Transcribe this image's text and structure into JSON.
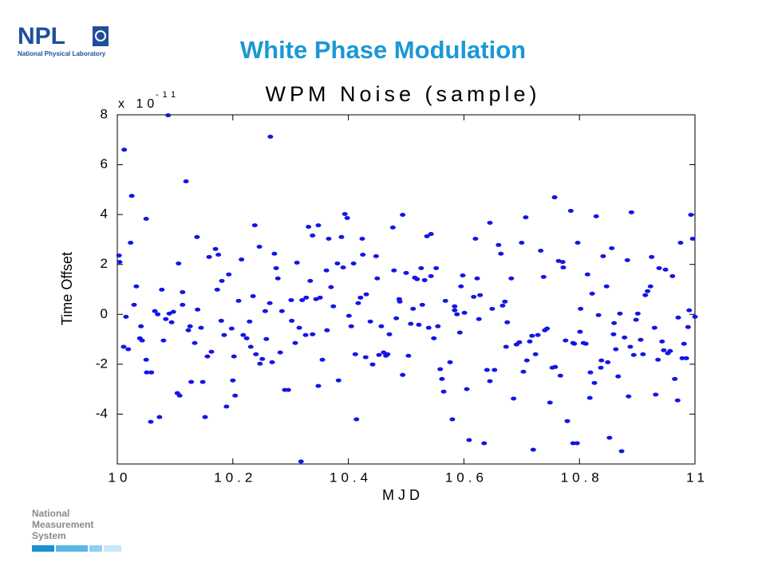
{
  "slide": {
    "title": "White Phase Modulation",
    "logo": "NPL",
    "organisation": "National Physical Laboratory",
    "footer": [
      "National",
      "Measurement",
      "System"
    ]
  },
  "chart_data": {
    "type": "scatter",
    "title": "WPM Noise (sample)",
    "x_label": "MJD",
    "y_label": "Time Offset",
    "y_multiplier": "x 10",
    "y_multiplier_exponent": "-11",
    "color": "#1414e6",
    "xlim": [
      10,
      11
    ],
    "ylim": [
      -6,
      8
    ],
    "xticks": [
      10,
      10.2,
      10.4,
      10.6,
      10.8,
      11
    ],
    "yticks": [
      -4,
      -2,
      0,
      2,
      4,
      6,
      8
    ],
    "x": [
      10.003,
      10.004,
      10.011,
      10.012,
      10.015,
      10.019,
      10.025,
      10.023,
      10.029,
      10.033,
      10.039,
      10.041,
      10.043,
      10.05,
      10.05,
      10.051,
      10.058,
      10.059,
      10.065,
      10.07,
      10.073,
      10.077,
      10.08,
      10.084,
      10.088,
      10.09,
      10.094,
      10.097,
      10.104,
      10.108,
      10.106,
      10.113,
      10.113,
      10.119,
      10.123,
      10.126,
      10.128,
      10.134,
      10.138,
      10.139,
      10.145,
      10.148,
      10.152,
      10.156,
      10.159,
      10.163,
      10.17,
      10.173,
      10.175,
      10.18,
      10.181,
      10.185,
      10.189,
      10.193,
      10.198,
      10.2,
      10.202,
      10.204,
      10.21,
      10.215,
      10.218,
      10.224,
      10.229,
      10.231,
      10.235,
      10.238,
      10.24,
      10.246,
      10.247,
      10.251,
      10.256,
      10.258,
      10.264,
      10.265,
      10.268,
      10.272,
      10.275,
      10.278,
      10.282,
      10.285,
      10.29,
      10.296,
      10.301,
      10.302,
      10.308,
      10.311,
      10.315,
      10.318,
      10.32,
      10.326,
      10.327,
      10.331,
      10.334,
      10.338,
      10.338,
      10.344,
      10.348,
      10.348,
      10.351,
      10.355,
      10.362,
      10.363,
      10.366,
      10.37,
      10.374,
      10.381,
      10.383,
      10.388,
      10.391,
      10.394,
      10.398,
      10.401,
      10.405,
      10.409,
      10.412,
      10.414,
      10.417,
      10.421,
      10.424,
      10.425,
      10.43,
      10.431,
      10.438,
      10.442,
      10.448,
      10.45,
      10.453,
      10.457,
      10.461,
      10.465,
      10.468,
      10.471,
      10.477,
      10.479,
      10.483,
      10.488,
      10.489,
      10.494,
      10.494,
      10.5,
      10.504,
      10.508,
      10.512,
      10.515,
      10.519,
      10.522,
      10.526,
      10.528,
      10.532,
      10.536,
      10.539,
      10.543,
      10.543,
      10.548,
      10.552,
      10.555,
      10.559,
      10.562,
      10.565,
      10.568,
      10.576,
      10.58,
      10.584,
      10.584,
      10.588,
      10.593,
      10.595,
      10.598,
      10.601,
      10.605,
      10.609,
      10.617,
      10.62,
      10.623,
      10.626,
      10.628,
      10.635,
      10.64,
      10.645,
      10.645,
      10.649,
      10.653,
      10.66,
      10.664,
      10.667,
      10.671,
      10.673,
      10.675,
      10.682,
      10.686,
      10.691,
      10.696,
      10.7,
      10.703,
      10.707,
      10.709,
      10.714,
      10.718,
      10.72,
      10.724,
      10.728,
      10.733,
      10.738,
      10.74,
      10.744,
      10.749,
      10.753,
      10.757,
      10.758,
      10.764,
      10.767,
      10.771,
      10.772,
      10.776,
      10.779,
      10.785,
      10.789,
      10.789,
      10.791,
      10.796,
      10.797,
      10.801,
      10.802,
      10.807,
      10.811,
      10.814,
      10.818,
      10.819,
      10.822,
      10.826,
      10.829,
      10.833,
      10.837,
      10.838,
      10.841,
      10.847,
      10.849,
      10.852,
      10.856,
      10.859,
      10.86,
      10.863,
      10.867,
      10.87,
      10.873,
      10.878,
      10.883,
      10.885,
      10.888,
      10.89,
      10.894,
      10.898,
      10.901,
      10.906,
      10.91,
      10.914,
      10.918,
      10.923,
      10.925,
      10.93,
      10.932,
      10.936,
      10.938,
      10.943,
      10.946,
      10.949,
      10.953,
      10.957,
      10.961,
      10.965,
      10.97,
      10.971,
      10.975,
      10.978,
      10.981,
      10.985,
      10.988,
      10.99,
      10.993,
      10.996,
      11
    ],
    "values": [
      2.36,
      2.1,
      -1.3,
      6.6,
      -0.1,
      -1.4,
      4.75,
      2.87,
      0.38,
      1.12,
      -0.96,
      -0.48,
      -1.05,
      3.83,
      -1.82,
      -2.33,
      -4.31,
      -2.33,
      0.13,
      0,
      -4.12,
      0.99,
      -1.05,
      -0.19,
      7.98,
      0.03,
      -0.32,
      0.1,
      -3.16,
      -3.26,
      2.04,
      0.38,
      0.89,
      5.33,
      -0.64,
      -0.48,
      -2.71,
      -1.15,
      3.1,
      0.19,
      -0.54,
      -2.71,
      -4.12,
      -1.69,
      2.3,
      -1.5,
      2.62,
      0.99,
      2.39,
      -0.26,
      1.34,
      -0.83,
      -3.7,
      1.6,
      -0.57,
      -2.65,
      -1.69,
      -3.26,
      0.54,
      2.2,
      -0.83,
      -0.96,
      -0.29,
      -1.3,
      0.73,
      3.57,
      -1.6,
      2.71,
      -1.98,
      -1.79,
      0.13,
      -0.99,
      0.45,
      7.12,
      -1.92,
      2.43,
      1.85,
      1.44,
      -1.53,
      0.13,
      -3.03,
      -3.03,
      0.57,
      -0.26,
      -1.15,
      2.07,
      -0.54,
      -5.9,
      0.57,
      -0.83,
      0.67,
      3.51,
      1.34,
      3.16,
      -0.8,
      0.61,
      3.57,
      -2.87,
      0.67,
      -1.82,
      1.76,
      -0.64,
      3.03,
      1.09,
      0.32,
      2.04,
      -2.65,
      3.1,
      1.88,
      4.02,
      3.86,
      -0.06,
      -0.48,
      2.04,
      -1.6,
      -4.21,
      0.45,
      0.67,
      3.03,
      2.39,
      -1.72,
      0.8,
      -0.29,
      -2.01,
      2.33,
      1.44,
      -1.63,
      -0.48,
      -1.53,
      -1.66,
      -1.6,
      -0.8,
      3.48,
      1.76,
      -0.16,
      0.61,
      0.51,
      3.99,
      -2.43,
      1.66,
      -1.66,
      -0.38,
      0.22,
      1.47,
      1.41,
      -0.42,
      1.85,
      0.38,
      1.37,
      3.13,
      -0.54,
      3.22,
      1.53,
      -0.96,
      1.85,
      -0.48,
      -2.2,
      -2.59,
      -3.1,
      0.54,
      -1.92,
      -4.21,
      0.32,
      0.16,
      0,
      -0.73,
      1.12,
      1.56,
      0.06,
      -3,
      -5.04,
      0.7,
      3.03,
      1.44,
      -0.19,
      0.77,
      -5.17,
      -2.23,
      -2.68,
      3.67,
      0.22,
      -2.23,
      2.78,
      2.43,
      0.35,
      0.51,
      -1.3,
      -0.32,
      1.44,
      -3.38,
      -1.21,
      -1.12,
      2.87,
      -2.3,
      3.89,
      -1.85,
      -1.09,
      -0.86,
      -5.43,
      -1.6,
      -0.83,
      2.55,
      1.5,
      -0.64,
      -0.57,
      -3.54,
      -2.14,
      4.69,
      -2.11,
      2.14,
      -2.46,
      2.1,
      1.88,
      -1.05,
      -4.28,
      4.15,
      -5.17,
      -1.15,
      -1.18,
      -5.17,
      2.87,
      -0.7,
      0.22,
      -1.15,
      -1.18,
      1.6,
      -3.35,
      -2.33,
      0.83,
      -2.75,
      3.93,
      -0.03,
      -2.14,
      -1.85,
      2.33,
      1.12,
      -1.92,
      -4.95,
      2.65,
      -0.8,
      -0.35,
      -1.4,
      -2.49,
      0.03,
      -5.49,
      -0.93,
      2.17,
      -3.29,
      -1.3,
      4.09,
      -1.63,
      -0.22,
      0.03,
      -1.02,
      -1.6,
      0.77,
      0.93,
      1.12,
      2.3,
      -0.54,
      -3.22,
      -1.82,
      1.85,
      -1.09,
      -1.44,
      1.79,
      -1.56,
      -1.47,
      1.53,
      -2.59,
      -3.45,
      -0.13,
      2.87,
      -1.76,
      -1.18,
      -1.76,
      -0.51,
      0.16,
      3.99,
      3.03,
      -0.1
    ]
  }
}
